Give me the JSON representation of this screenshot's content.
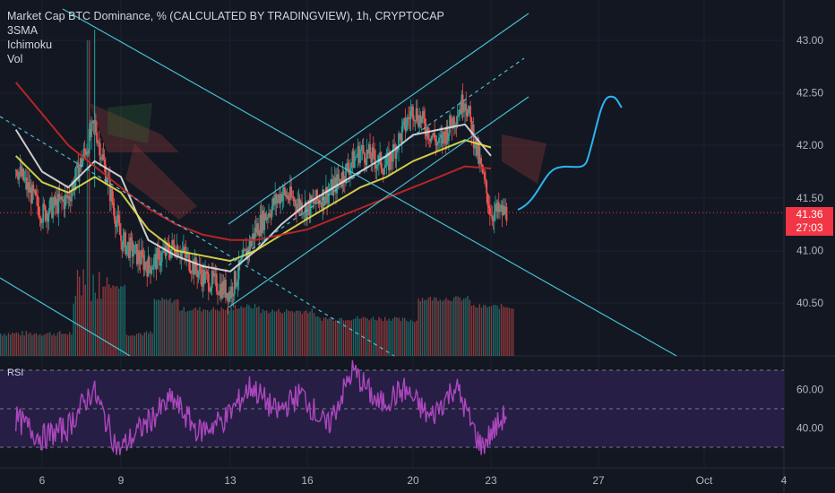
{
  "legend": {
    "title": "Market Cap BTC Dominance, % (CALCULATED BY TRADINGVIEW), 1h, CRYPTOCAP",
    "indicators": [
      "3SMA",
      "Ichimoku",
      "Vol"
    ]
  },
  "rsi_label": "RSI",
  "price_tag": {
    "price": "41.36",
    "countdown": "27:03"
  },
  "colors": {
    "background": "#131722",
    "price_up": "#26a69a",
    "price_down": "#ef5350",
    "channel": "#4dd0e1",
    "projection": "#29b6f6",
    "sma_fast": "#e0e0e0",
    "sma_mid": "#e6e04a",
    "sma_slow": "#c62828",
    "rsi_line": "#ab47bc",
    "rsi_band": "#2a1f4a"
  },
  "chart_data": [
    {
      "type": "line",
      "title": "Market Cap BTC Dominance, % (CALCULATED BY TRADINGVIEW), 1h, CRYPTOCAP",
      "ylabel": "%",
      "y_ticks": [
        "43.00",
        "42.50",
        "42.00",
        "41.50",
        "41.00",
        "40.50"
      ],
      "x_ticks": [
        "6",
        "9",
        "13",
        "16",
        "20",
        "23",
        "27",
        "Oct",
        "4"
      ],
      "ylim": [
        40.1,
        43.2
      ],
      "last_price": 41.36,
      "close_points": [
        {
          "x": "5",
          "y": 41.8
        },
        {
          "x": "6",
          "y": 41.35
        },
        {
          "x": "7",
          "y": 41.5
        },
        {
          "x": "8",
          "y": 42.2
        },
        {
          "x": "9",
          "y": 41.1
        },
        {
          "x": "10",
          "y": 40.85
        },
        {
          "x": "11",
          "y": 41.05
        },
        {
          "x": "12",
          "y": 40.75
        },
        {
          "x": "13",
          "y": 40.6
        },
        {
          "x": "14",
          "y": 41.2
        },
        {
          "x": "15",
          "y": 41.55
        },
        {
          "x": "16",
          "y": 41.4
        },
        {
          "x": "17",
          "y": 41.6
        },
        {
          "x": "18",
          "y": 41.95
        },
        {
          "x": "19",
          "y": 41.8
        },
        {
          "x": "20",
          "y": 42.35
        },
        {
          "x": "21",
          "y": 42.0
        },
        {
          "x": "22",
          "y": 42.45
        },
        {
          "x": "23",
          "y": 41.36
        }
      ],
      "series": [
        {
          "values": [
            42.15,
            41.75,
            41.6,
            41.85,
            41.7,
            41.1,
            40.95,
            40.85,
            40.8,
            41.0,
            41.25,
            41.45,
            41.6,
            41.75,
            41.9,
            42.1,
            42.15,
            42.2,
            41.9
          ]
        },
        {
          "values": [
            41.9,
            41.65,
            41.55,
            41.7,
            41.55,
            41.2,
            41.0,
            40.95,
            40.9,
            41.0,
            41.15,
            41.3,
            41.45,
            41.6,
            41.7,
            41.85,
            41.95,
            42.05,
            41.98
          ]
        },
        {
          "values": [
            42.6,
            42.3,
            42.0,
            41.8,
            41.6,
            41.4,
            41.25,
            41.15,
            41.1,
            41.1,
            41.15,
            41.2,
            41.3,
            41.4,
            41.5,
            41.6,
            41.7,
            41.8,
            41.78
          ]
        }
      ]
    },
    {
      "type": "line",
      "title": "RSI",
      "y_ticks": [
        "60.00",
        "40.00"
      ],
      "ylim": [
        25,
        80
      ],
      "band": [
        30,
        70
      ],
      "values": [
        45,
        35,
        40,
        60,
        28,
        42,
        55,
        38,
        45,
        62,
        48,
        58,
        40,
        70,
        52,
        60,
        45,
        62,
        30,
        48
      ]
    }
  ]
}
